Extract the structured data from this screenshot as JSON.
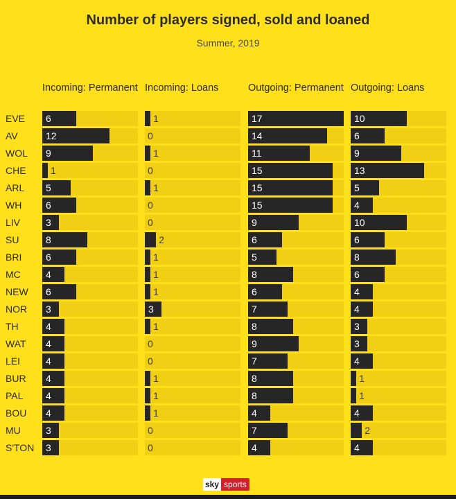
{
  "chart_data": {
    "type": "bar",
    "title": "Number of players signed, sold and loaned",
    "subtitle": "Summer, 2019",
    "categories": [
      "EVE",
      "AV",
      "WOL",
      "CHE",
      "ARL",
      "WH",
      "LIV",
      "SU",
      "BRI",
      "MC",
      "NEW",
      "NOR",
      "TH",
      "WAT",
      "LEI",
      "BUR",
      "PAL",
      "BOU",
      "MU",
      "S'TON"
    ],
    "series": [
      {
        "name": "Incoming: Permanent",
        "values": [
          6,
          12,
          9,
          1,
          5,
          6,
          3,
          8,
          6,
          4,
          6,
          3,
          4,
          4,
          4,
          4,
          4,
          4,
          3,
          3
        ]
      },
      {
        "name": "Incoming: Loans",
        "values": [
          1,
          0,
          1,
          0,
          1,
          0,
          0,
          2,
          1,
          1,
          1,
          3,
          1,
          0,
          0,
          1,
          1,
          1,
          0,
          0
        ]
      },
      {
        "name": "Outgoing: Permanent",
        "values": [
          17,
          14,
          11,
          15,
          15,
          15,
          9,
          6,
          5,
          8,
          6,
          7,
          8,
          9,
          7,
          8,
          8,
          4,
          7,
          4
        ]
      },
      {
        "name": "Outgoing: Loans",
        "values": [
          10,
          6,
          9,
          13,
          5,
          4,
          10,
          6,
          8,
          6,
          4,
          4,
          3,
          3,
          4,
          1,
          1,
          4,
          2,
          4
        ]
      }
    ],
    "xlim": [
      0,
      17
    ],
    "grid": false,
    "legend": "none"
  },
  "colors": {
    "background": "#ffe01b",
    "bar": "#262626",
    "track": "#f0cf14"
  },
  "footer": {
    "logo_sky": "sky",
    "logo_sports": "sports"
  }
}
